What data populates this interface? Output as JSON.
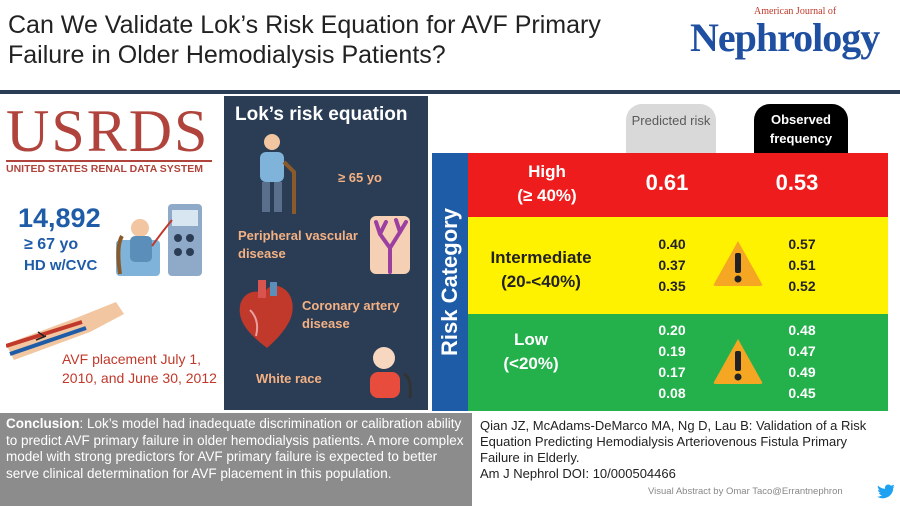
{
  "title": "Can We Validate Lok’s Risk Equation for AVF Primary Failure in Older Hemodialysis Patients?",
  "journal": {
    "small": "American Journal of",
    "big": "Nephrology"
  },
  "usrds": {
    "logo": "USRDS",
    "subtitle": "UNITED STATES RENAL DATA SYSTEM"
  },
  "cohort": {
    "count": "14,892",
    "age": "≥ 67 yo",
    "hd": "HD w/CVC"
  },
  "avf_placement": "AVF placement July 1, 2010, and June 30, 2012",
  "lok": {
    "title": "Lok’s risk equation",
    "age": "≥ 65 yo",
    "pvd": "Peripheral vascular disease",
    "cad": "Coronary artery disease",
    "race": "White race"
  },
  "headers": {
    "predicted": "Predicted risk",
    "observed": "Observed frequency"
  },
  "risk_label": "Risk Category",
  "categories": {
    "high": {
      "label1": "High",
      "label2": "(≥ 40%)",
      "predicted": "0.61",
      "observed": "0.53"
    },
    "intermediate": {
      "label1": "Intermediate",
      "label2": "(20-<40%)",
      "predicted": [
        "0.40",
        "0.37",
        "0.35"
      ],
      "observed": [
        "0.57",
        "0.51",
        "0.52"
      ]
    },
    "low": {
      "label1": "Low",
      "label2": "(<20%)",
      "predicted": [
        "0.20",
        "0.19",
        "0.17",
        "0.08"
      ],
      "observed": [
        "0.48",
        "0.47",
        "0.49",
        "0.45"
      ]
    }
  },
  "conclusion": {
    "label": "Conclusion",
    "text": ": Lok’s model had inadequate discrimination or calibration ability to predict AVF primary failure in older hemodialysis patients. A more complex model with strong predictors for AVF primary failure is expected to better serve clinical determination for AVF placement in this population."
  },
  "citation": {
    "text": "Qian JZ, McAdams-DeMarco MA, Ng D, Lau B: Validation of a Risk Equation Predicting Hemodialysis Arteriovenous Fistula Primary Failure in Elderly.",
    "doi": "Am J Nephrol DOI: 10/000504466"
  },
  "credit": "Visual Abstract by Omar Taco@Errantnephron",
  "colors": {
    "high": "#ee1c1c",
    "intermediate": "#fff200",
    "low": "#24b14c",
    "navy": "#2b3d55",
    "blue": "#1f5ca8",
    "orange": "#f4b183"
  },
  "icons": [
    "dialysis-machine-icon",
    "arm-fistula-icon",
    "elderly-person-icon",
    "blood-vessel-icon",
    "heart-icon",
    "person-icon",
    "warning-icon",
    "twitter-bird-icon"
  ]
}
